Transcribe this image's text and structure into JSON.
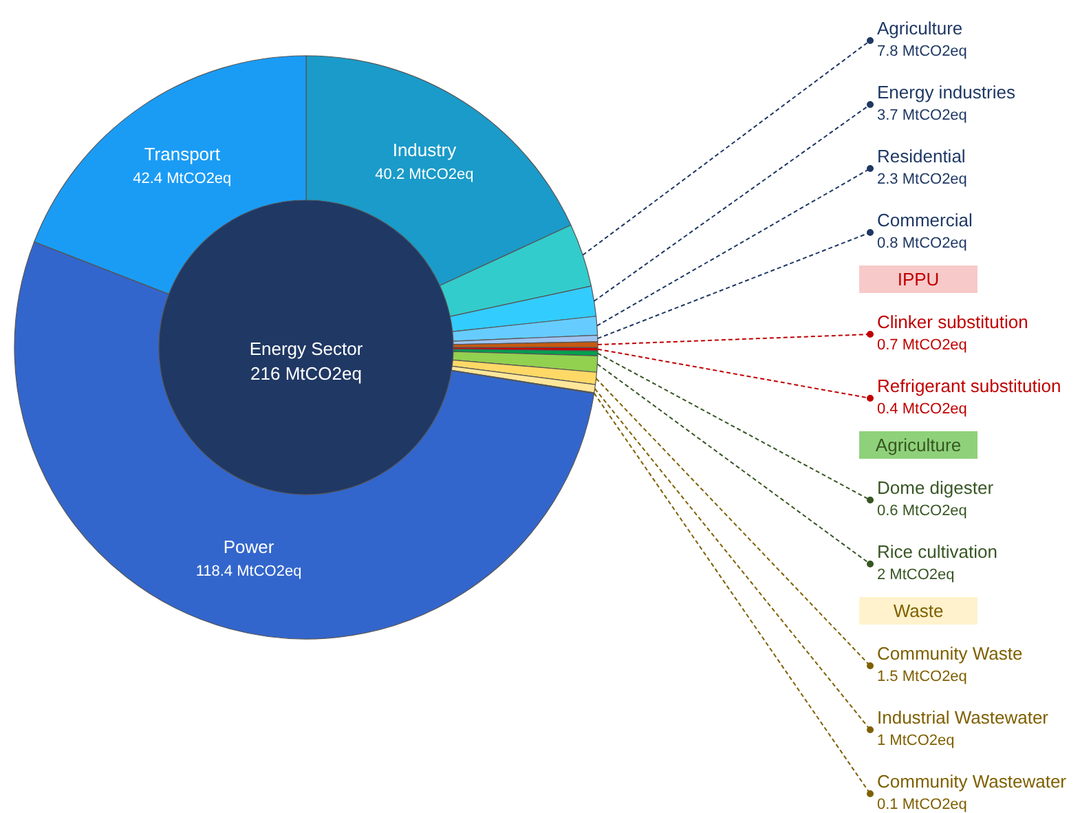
{
  "chart_data": {
    "type": "donut",
    "categories": [
      "Industry",
      "Agriculture",
      "Energy industries",
      "Residential",
      "Commercial",
      "Clinker substitution",
      "Refrigerant substitution",
      "Dome digester",
      "Rice cultivation",
      "Community Waste",
      "Industrial Wastewater",
      "Community Wastewater",
      "Power",
      "Transport"
    ],
    "values": [
      40.2,
      7.8,
      3.7,
      2.3,
      0.8,
      0.7,
      0.4,
      0.6,
      2,
      1.5,
      1,
      0.1,
      118.4,
      42.4
    ],
    "colors": [
      "#1a9bc9",
      "#33cccc",
      "#33ccff",
      "#66ccff",
      "#9dc3f0",
      "#c55a11",
      "#d00000",
      "#00a050",
      "#92d050",
      "#ffd966",
      "#ffe699",
      "#fff2cc",
      "#3366cc",
      "#1a9cf5"
    ],
    "value_labels": [
      "40.2 MtCO2eq",
      "7.8 MtCO2eq",
      "3.7 MtCO2eq",
      "2.3 MtCO2eq",
      "0.8 MtCO2eq",
      "0.7 MtCO2eq",
      "0.4 MtCO2eq",
      "0.6 MtCO2eq",
      "2 MtCO2eq",
      "1.5 MtCO2eq",
      "1 MtCO2eq",
      "0.1 MtCO2eq",
      "118.4 MtCO2eq",
      "42.4 MtCO2eq"
    ],
    "annotations": [
      "Energy Sector\n216 MtCO2eq",
      {
        "text": "IPPU",
        "x": "Clinker substitution"
      },
      {
        "text": "Agriculture",
        "x": "Dome digester"
      },
      {
        "text": "Waste",
        "x": "Community Waste"
      }
    ]
  }
}
